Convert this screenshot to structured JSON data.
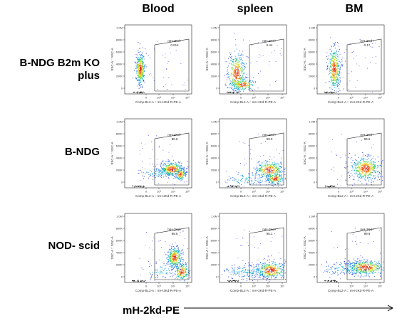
{
  "column_headers": [
    "Blood",
    "spleen",
    "BM"
  ],
  "row_labels": [
    [
      "B-NDG B2m KO",
      "plus"
    ],
    [
      "B-NDG"
    ],
    [
      "NOD- scid"
    ]
  ],
  "bottom_axis_title": "mH-2kd-PE",
  "chart_data": {
    "type": "scatter",
    "x_axis_label": "Comp-BL2-A :: mH-2Kd-R-PE-A",
    "y_axis_label": "SSC-A :: SSC-A",
    "x_tick_labels": [
      "0",
      "10³",
      "10⁴",
      "10⁵"
    ],
    "y_tick_labels": [
      "0",
      "200K",
      "400K",
      "600K",
      "800K",
      "1.0M"
    ],
    "y_range": [
      0,
      1000000
    ],
    "gate_name": "mH-2Kd+",
    "panels": [
      {
        "row": 0,
        "col": 0,
        "gate_pct": "0.014",
        "populations": [
          "negative"
        ]
      },
      {
        "row": 0,
        "col": 1,
        "gate_pct": "0.44",
        "populations": [
          "negative"
        ]
      },
      {
        "row": 0,
        "col": 2,
        "gate_pct": "0.17",
        "populations": [
          "negative"
        ]
      },
      {
        "row": 1,
        "col": 0,
        "gate_pct": "90.6",
        "populations": [
          "positive"
        ]
      },
      {
        "row": 1,
        "col": 1,
        "gate_pct": "99.3",
        "populations": [
          "positive"
        ]
      },
      {
        "row": 1,
        "col": 2,
        "gate_pct": "99.6",
        "populations": [
          "positive"
        ]
      },
      {
        "row": 2,
        "col": 0,
        "gate_pct": "99.5",
        "populations": [
          "positive"
        ]
      },
      {
        "row": 2,
        "col": 1,
        "gate_pct": "95.1",
        "populations": [
          "positive"
        ]
      },
      {
        "row": 2,
        "col": 2,
        "gate_pct": "99.9",
        "populations": [
          "positive"
        ]
      }
    ]
  }
}
